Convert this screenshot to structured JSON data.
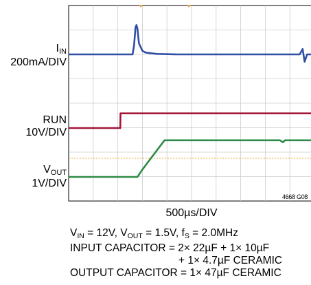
{
  "chart_data": {
    "type": "line",
    "title": "",
    "grid": true,
    "x_divisions": 10,
    "y_divisions": 8,
    "xlabel": "500µs/DIV",
    "xlim": [
      0,
      5000
    ],
    "x_unit": "µs",
    "channels": [
      {
        "name_main": "I",
        "name_sub": "IN",
        "scale": "200mA/DIV",
        "color": "#2e4fa3",
        "x": [
          0,
          1300,
          1330,
          1360,
          1380,
          1400,
          1430,
          1500,
          1560,
          1650,
          1800,
          2200,
          3000,
          4000,
          4700,
          4760,
          4800,
          4850,
          4900,
          5000
        ],
        "y": [
          0,
          0,
          0.35,
          1.1,
          1.2,
          1.05,
          0.45,
          0.15,
          0.08,
          0.05,
          0.02,
          0,
          0,
          0,
          0,
          0.22,
          -0.3,
          0,
          0,
          0
        ]
      },
      {
        "name_main": "RUN",
        "name_sub": "",
        "scale": "10V/DIV",
        "color": "#a3163a",
        "x": [
          0,
          1050,
          1055,
          5000
        ],
        "y": [
          0,
          0,
          0.6,
          0.6
        ]
      },
      {
        "name_main": "V",
        "name_sub": "OUT",
        "scale": "1V/DIV",
        "color": "#2e8b47",
        "x": [
          0,
          1400,
          1500,
          1950,
          2100,
          4300,
          4360,
          4400,
          4450,
          4500,
          5000
        ],
        "y": [
          0,
          0,
          0.3,
          1.5,
          1.5,
          1.5,
          1.42,
          1.5,
          1.5,
          1.5,
          1.5
        ]
      }
    ]
  },
  "figure_id": "4668 G08",
  "notes": {
    "line1": {
      "vin_main": "V",
      "vin_sub": "IN",
      "vin_val": " = 12V, ",
      "vout_main": "V",
      "vout_sub": "OUT",
      "vout_val": " = 1.5V, ",
      "fs_main": "f",
      "fs_sub": "S",
      "fs_val": " = 2.0MHz"
    },
    "line2": "INPUT CAPACITOR = 2× 22µF + 1× 10µF",
    "line3": "+ 1× 4.7µF CERAMIC",
    "line4": "OUTPUT CAPACITOR = 1× 47µF CERAMIC"
  },
  "colors": {
    "grid": "#cccccc",
    "frame": "#000000",
    "reference_dashed": "#f0a030",
    "trigger_marker": "#e8a040"
  }
}
